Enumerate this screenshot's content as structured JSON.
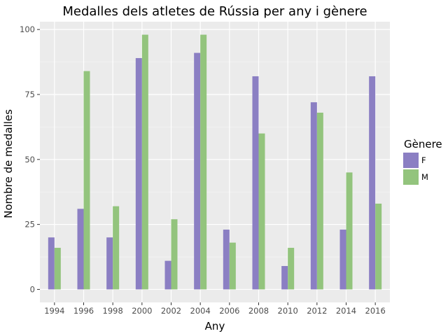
{
  "chart_data": {
    "type": "bar",
    "title": "Medalles dels atletes de Rússia per any i gènere",
    "xlabel": "Any",
    "ylabel": "Nombre de medalles",
    "categories": [
      "1994",
      "1996",
      "1998",
      "2000",
      "2002",
      "2004",
      "2006",
      "2008",
      "2010",
      "2012",
      "2014",
      "2016"
    ],
    "series": [
      {
        "name": "F",
        "color": "#8b7fc3",
        "values": [
          20,
          31,
          20,
          89,
          11,
          91,
          23,
          82,
          9,
          72,
          23,
          82
        ]
      },
      {
        "name": "M",
        "color": "#93c47d",
        "values": [
          16,
          84,
          32,
          98,
          27,
          98,
          18,
          60,
          16,
          68,
          45,
          33
        ]
      }
    ],
    "ylim": [
      -5,
      103
    ],
    "yticks": [
      0,
      25,
      50,
      75,
      100
    ],
    "grid": true,
    "legend": {
      "title": "Gènere",
      "position": "right"
    },
    "panel_background": "#ebebeb"
  }
}
